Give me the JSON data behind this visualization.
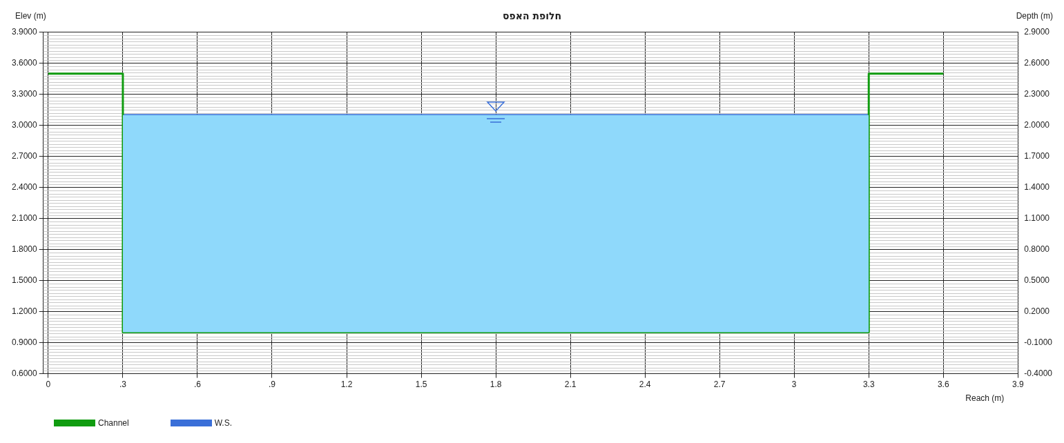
{
  "chart_data": {
    "type": "line",
    "title": "חלופת האפס",
    "xlabel": "Reach (m)",
    "ylabel": "Elev (m)",
    "y2label": "Depth (m)",
    "series": [
      {
        "name": "Channel",
        "color": "#109c10",
        "x": [
          0,
          0.3,
          0.3,
          3.3,
          3.3,
          3.6
        ],
        "values": [
          3.5,
          3.5,
          1.0,
          1.0,
          3.5,
          3.5
        ]
      },
      {
        "name": "W.S.",
        "color": "#3a6fd8",
        "x": [
          0.3,
          3.3
        ],
        "values": [
          3.1,
          3.1
        ],
        "lower": [
          1.0,
          1.0
        ],
        "upper": [
          3.1,
          3.1
        ]
      }
    ],
    "xlim": [
      -0.02,
      3.9
    ],
    "xticks": [
      0,
      {
        "value": 0.3,
        "label": ".3"
      },
      {
        "value": 0.6,
        "label": ".6"
      },
      {
        "value": 0.9,
        "label": ".9"
      },
      1.2,
      1.5,
      1.8,
      2.1,
      2.4,
      2.7,
      3,
      3.3,
      3.6,
      3.9
    ],
    "ylim": [
      0.6,
      3.9
    ],
    "yticks": [
      {
        "value": 0.6,
        "label": "0.6000"
      },
      {
        "value": 0.9,
        "label": "0.9000"
      },
      {
        "value": 1.2,
        "label": "1.2000"
      },
      {
        "value": 1.5,
        "label": "1.5000"
      },
      {
        "value": 1.8,
        "label": "1.8000"
      },
      {
        "value": 2.1,
        "label": "2.1000"
      },
      {
        "value": 2.4,
        "label": "2.4000"
      },
      {
        "value": 2.7,
        "label": "2.7000"
      },
      {
        "value": 3.0,
        "label": "3.0000"
      },
      {
        "value": 3.3,
        "label": "3.3000"
      },
      {
        "value": 3.6,
        "label": "3.6000"
      },
      {
        "value": 3.9,
        "label": "3.9000"
      }
    ],
    "y2lim": [
      -0.4,
      2.9
    ],
    "y2ticks": [
      {
        "value": -0.4,
        "label": "-0.4000"
      },
      {
        "value": -0.1,
        "label": "-0.1000"
      },
      {
        "value": 0.2,
        "label": "0.2000"
      },
      {
        "value": 0.5,
        "label": "0.5000"
      },
      {
        "value": 0.8,
        "label": "0.8000"
      },
      {
        "value": 1.1,
        "label": "1.1000"
      },
      {
        "value": 1.4,
        "label": "1.4000"
      },
      {
        "value": 1.7,
        "label": "1.7000"
      },
      {
        "value": 2.0,
        "label": "2.0000"
      },
      {
        "value": 2.3,
        "label": "2.3000"
      },
      {
        "value": 2.6,
        "label": "2.6000"
      },
      {
        "value": 2.9,
        "label": "2.9000"
      }
    ],
    "grid": true,
    "legend": "bottom left",
    "marker": "none",
    "line_style": "solid"
  }
}
